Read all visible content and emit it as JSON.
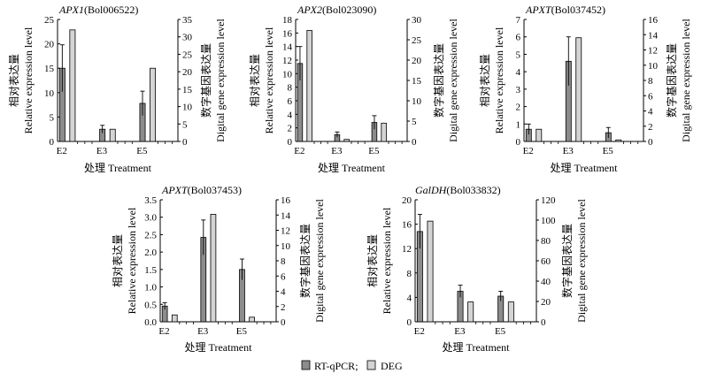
{
  "figure": {
    "legend": {
      "rtqpcr": "RT-qPCR;",
      "deg": "DEG"
    },
    "colors": {
      "rtqpcr": "#8c8c8c",
      "deg": "#d4d4d4",
      "stroke": "#000000"
    }
  },
  "chart_data": [
    {
      "type": "bar",
      "title_gene": "APX1",
      "title_id": "(Bol006522)",
      "categories": [
        "E2",
        "E3",
        "E5"
      ],
      "xlabel": "处理 Treatment",
      "ylabel_left_cn": "相对表达量",
      "ylabel_left_en": "Relative expression level",
      "ylabel_right_cn": "数字基因表达量",
      "ylabel_right_en": "Digital gene expression level",
      "ylim_left": [
        0,
        25
      ],
      "yticks_left": [
        0,
        5,
        10,
        15,
        20,
        25
      ],
      "ylim_right": [
        0,
        35
      ],
      "yticks_right": [
        0,
        5,
        10,
        15,
        20,
        25,
        30,
        35
      ],
      "series": [
        {
          "name": "RT-qPCR",
          "axis": "left",
          "values": [
            15.0,
            2.5,
            7.8
          ],
          "errors": [
            4.8,
            0.8,
            2.5
          ]
        },
        {
          "name": "DEG",
          "axis": "right",
          "values": [
            32.0,
            3.5,
            21.0
          ]
        }
      ]
    },
    {
      "type": "bar",
      "title_gene": "APX2",
      "title_id": "(Bol023090)",
      "categories": [
        "E2",
        "E3",
        "E5"
      ],
      "xlabel": "处理 Treatment",
      "ylabel_left_cn": "相对表达量",
      "ylabel_left_en": "Relative expression level",
      "ylabel_right_cn": "数字基因表达量",
      "ylabel_right_en": "Digital gene expression level",
      "ylim_left": [
        0,
        18
      ],
      "yticks_left": [
        0,
        2,
        4,
        6,
        8,
        10,
        12,
        14,
        16,
        18
      ],
      "ylim_right": [
        0,
        30
      ],
      "yticks_right": [
        0,
        5,
        10,
        15,
        20,
        25,
        30
      ],
      "series": [
        {
          "name": "RT-qPCR",
          "axis": "left",
          "values": [
            11.5,
            1.0,
            2.8
          ],
          "errors": [
            2.5,
            0.4,
            1.0
          ]
        },
        {
          "name": "DEG",
          "axis": "right",
          "values": [
            27.3,
            0.5,
            4.5
          ]
        }
      ]
    },
    {
      "type": "bar",
      "title_gene": "APXT",
      "title_id": "(Bol037452)",
      "categories": [
        "E2",
        "E3",
        "E5"
      ],
      "xlabel": "处理 Treatment",
      "ylabel_left_cn": "相对表达量",
      "ylabel_left_en": "Relative expression level",
      "ylabel_right_cn": "数字基因表达量",
      "ylabel_right_en": "Digital gene expression level",
      "ylim_left": [
        0,
        7
      ],
      "yticks_left": [
        0,
        1,
        2,
        3,
        4,
        5,
        6,
        7
      ],
      "ylim_right": [
        0,
        16
      ],
      "yticks_right": [
        0,
        2,
        4,
        6,
        8,
        10,
        12,
        14,
        16
      ],
      "series": [
        {
          "name": "RT-qPCR",
          "axis": "left",
          "values": [
            0.7,
            4.6,
            0.5
          ],
          "errors": [
            0.3,
            1.4,
            0.3
          ]
        },
        {
          "name": "DEG",
          "axis": "right",
          "values": [
            1.6,
            13.6,
            0.2
          ]
        }
      ]
    },
    {
      "type": "bar",
      "title_gene": "APXT",
      "title_id": "(Bol037453)",
      "categories": [
        "E2",
        "E3",
        "E5"
      ],
      "xlabel": "处理 Treatment",
      "ylabel_left_cn": "相对表达量",
      "ylabel_left_en": "Relative expression level",
      "ylabel_right_cn": "数字基因表达量",
      "ylabel_right_en": "Digital gene expression level",
      "ylim_left": [
        0,
        3.5
      ],
      "yticks_left": [
        0,
        0.5,
        1.0,
        1.5,
        2.0,
        2.5,
        3.0,
        3.5
      ],
      "ylim_right": [
        0,
        16
      ],
      "yticks_right": [
        0,
        2,
        4,
        6,
        8,
        10,
        12,
        14,
        16
      ],
      "series": [
        {
          "name": "RT-qPCR",
          "axis": "left",
          "values": [
            0.45,
            2.42,
            1.5
          ],
          "errors": [
            0.1,
            0.5,
            0.3
          ]
        },
        {
          "name": "DEG",
          "axis": "right",
          "values": [
            0.9,
            14.1,
            0.6
          ]
        }
      ]
    },
    {
      "type": "bar",
      "title_gene": "GalDH",
      "title_id": "(Bol033832)",
      "categories": [
        "E2",
        "E3",
        "E5"
      ],
      "xlabel": "处理 Treatment",
      "ylabel_left_cn": "相对表达量",
      "ylabel_left_en": "Relative expression level",
      "ylabel_right_cn": "数字基因表达量",
      "ylabel_right_en": "Digital gene expression level",
      "ylim_left": [
        0,
        20
      ],
      "yticks_left": [
        0,
        4,
        8,
        12,
        16,
        20
      ],
      "ylim_right": [
        0,
        120
      ],
      "yticks_right": [
        0,
        20,
        40,
        60,
        80,
        100,
        120
      ],
      "series": [
        {
          "name": "RT-qPCR",
          "axis": "left",
          "values": [
            14.8,
            5.0,
            4.2
          ],
          "errors": [
            2.8,
            1.0,
            0.8
          ]
        },
        {
          "name": "DEG",
          "axis": "right",
          "values": [
            99.0,
            19.5,
            19.5
          ]
        }
      ]
    }
  ]
}
